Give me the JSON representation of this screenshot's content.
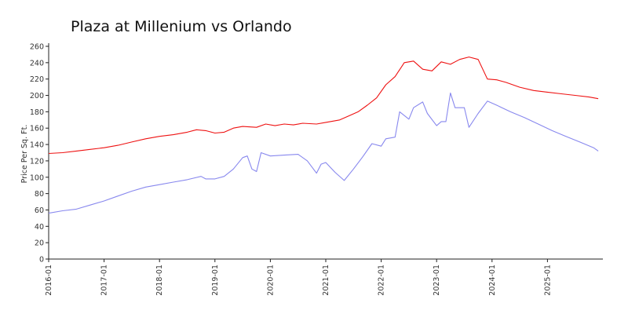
{
  "chart_data": {
    "type": "line",
    "title": "Plaza at Millenium vs Orlando",
    "xlabel": "",
    "ylabel": "Price Per Sq. Ft.",
    "ylim": [
      0,
      260
    ],
    "yticks": [
      0,
      20,
      40,
      60,
      80,
      100,
      120,
      140,
      160,
      180,
      200,
      220,
      240,
      260
    ],
    "xlim": [
      "2016-01",
      "2026-01"
    ],
    "xticks": [
      "2016-01",
      "2017-01",
      "2018-01",
      "2019-01",
      "2020-01",
      "2021-01",
      "2022-01",
      "2023-01",
      "2024-01",
      "2025-01"
    ],
    "grid": false,
    "legend": "none",
    "series": [
      {
        "color": "#ee1111",
        "points": [
          [
            "2016-01",
            129
          ],
          [
            "2016-04",
            130
          ],
          [
            "2016-07",
            132
          ],
          [
            "2016-10",
            134
          ],
          [
            "2017-01",
            136
          ],
          [
            "2017-04",
            139
          ],
          [
            "2017-07",
            143
          ],
          [
            "2017-10",
            147
          ],
          [
            "2018-01",
            150
          ],
          [
            "2018-04",
            152
          ],
          [
            "2018-07",
            155
          ],
          [
            "2018-09",
            158
          ],
          [
            "2018-11",
            157
          ],
          [
            "2019-01",
            154
          ],
          [
            "2019-03",
            155
          ],
          [
            "2019-05",
            160
          ],
          [
            "2019-07",
            162
          ],
          [
            "2019-10",
            161
          ],
          [
            "2019-12",
            165
          ],
          [
            "2020-02",
            163
          ],
          [
            "2020-04",
            165
          ],
          [
            "2020-06",
            164
          ],
          [
            "2020-08",
            166
          ],
          [
            "2020-11",
            165
          ],
          [
            "2021-01",
            167
          ],
          [
            "2021-04",
            170
          ],
          [
            "2021-06",
            175
          ],
          [
            "2021-08",
            180
          ],
          [
            "2021-10",
            188
          ],
          [
            "2021-12",
            197
          ],
          [
            "2022-02",
            213
          ],
          [
            "2022-04",
            223
          ],
          [
            "2022-06",
            240
          ],
          [
            "2022-08",
            242
          ],
          [
            "2022-10",
            232
          ],
          [
            "2022-12",
            230
          ],
          [
            "2023-02",
            241
          ],
          [
            "2023-04",
            238
          ],
          [
            "2023-06",
            244
          ],
          [
            "2023-08",
            247
          ],
          [
            "2023-10",
            244
          ],
          [
            "2023-12",
            220
          ],
          [
            "2024-02",
            219
          ],
          [
            "2024-04",
            216
          ],
          [
            "2024-07",
            210
          ],
          [
            "2024-10",
            206
          ],
          [
            "2025-01",
            204
          ],
          [
            "2025-04",
            202
          ],
          [
            "2025-07",
            200
          ],
          [
            "2025-10",
            198
          ],
          [
            "2025-12",
            196
          ]
        ]
      },
      {
        "color": "#8888ee",
        "points": [
          [
            "2016-01",
            56
          ],
          [
            "2016-04",
            59
          ],
          [
            "2016-07",
            61
          ],
          [
            "2016-10",
            66
          ],
          [
            "2017-01",
            71
          ],
          [
            "2017-04",
            77
          ],
          [
            "2017-07",
            83
          ],
          [
            "2017-10",
            88
          ],
          [
            "2018-01",
            91
          ],
          [
            "2018-04",
            94
          ],
          [
            "2018-07",
            97
          ],
          [
            "2018-10",
            101
          ],
          [
            "2018-11",
            98
          ],
          [
            "2019-01",
            98
          ],
          [
            "2019-03",
            101
          ],
          [
            "2019-05",
            110
          ],
          [
            "2019-07",
            124
          ],
          [
            "2019-08",
            126
          ],
          [
            "2019-09",
            110
          ],
          [
            "2019-10",
            107
          ],
          [
            "2019-11",
            130
          ],
          [
            "2020-01",
            126
          ],
          [
            "2020-04",
            127
          ],
          [
            "2020-07",
            128
          ],
          [
            "2020-09",
            120
          ],
          [
            "2020-11",
            105
          ],
          [
            "2020-12",
            116
          ],
          [
            "2021-01",
            118
          ],
          [
            "2021-03",
            106
          ],
          [
            "2021-05",
            96
          ],
          [
            "2021-07",
            110
          ],
          [
            "2021-09",
            125
          ],
          [
            "2021-11",
            141
          ],
          [
            "2022-01",
            138
          ],
          [
            "2022-02",
            147
          ],
          [
            "2022-04",
            149
          ],
          [
            "2022-05",
            180
          ],
          [
            "2022-07",
            171
          ],
          [
            "2022-08",
            185
          ],
          [
            "2022-10",
            192
          ],
          [
            "2022-11",
            178
          ],
          [
            "2023-01",
            163
          ],
          [
            "2023-02",
            168
          ],
          [
            "2023-03",
            168
          ],
          [
            "2023-04",
            203
          ],
          [
            "2023-05",
            185
          ],
          [
            "2023-07",
            185
          ],
          [
            "2023-08",
            161
          ],
          [
            "2023-10",
            178
          ],
          [
            "2023-12",
            193
          ],
          [
            "2024-02",
            188
          ],
          [
            "2024-05",
            180
          ],
          [
            "2024-08",
            173
          ],
          [
            "2024-11",
            165
          ],
          [
            "2025-02",
            157
          ],
          [
            "2025-05",
            150
          ],
          [
            "2025-08",
            143
          ],
          [
            "2025-11",
            136
          ],
          [
            "2025-12",
            132
          ]
        ]
      }
    ]
  }
}
